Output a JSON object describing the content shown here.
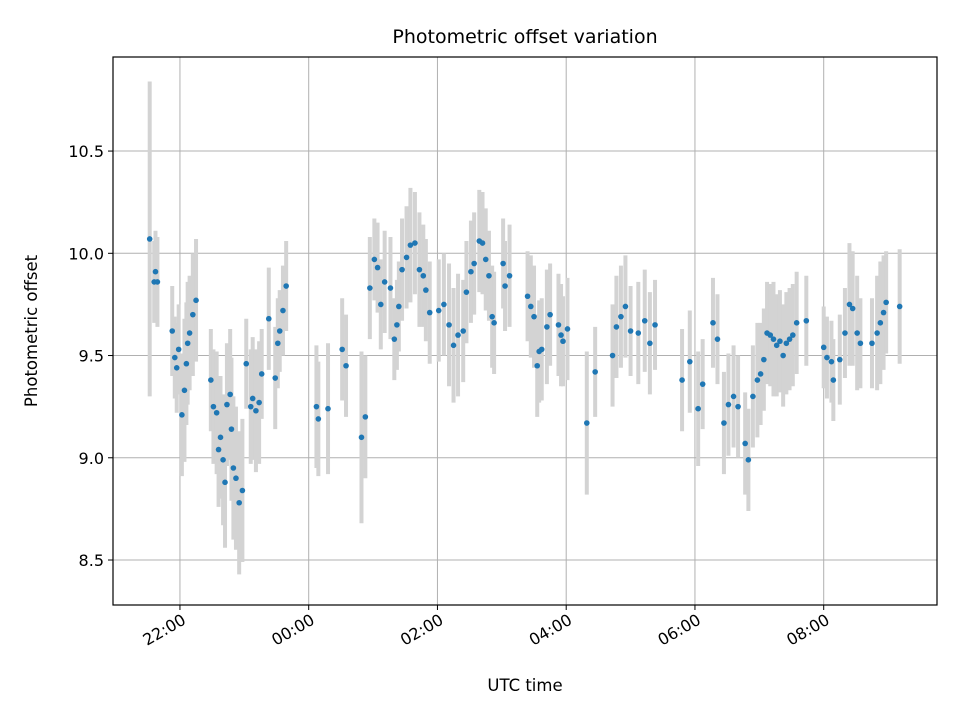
{
  "chart_data": {
    "type": "scatter",
    "title": "Photometric offset variation",
    "xlabel": "UTC time",
    "ylabel": "Photometric offset",
    "x_unit": "hours",
    "x_tick_values": [
      22,
      24,
      26,
      28,
      30,
      32
    ],
    "x_tick_labels": [
      "22:00",
      "00:00",
      "02:00",
      "04:00",
      "06:00",
      "08:00"
    ],
    "y_ticks": [
      8.5,
      9.0,
      9.5,
      10.0,
      10.5
    ],
    "y_tick_labels": [
      "8.5",
      "9.0",
      "9.5",
      "10.0",
      "10.5"
    ],
    "xlim": [
      20.96,
      33.76
    ],
    "ylim": [
      8.28,
      10.96
    ],
    "grid": true,
    "marker_color": "#1f77b4",
    "errorbar_color": "#d3d3d3",
    "points": [
      [
        21.53,
        10.07,
        0.77
      ],
      [
        21.6,
        9.86,
        0.2
      ],
      [
        21.62,
        9.91,
        0.2
      ],
      [
        21.65,
        9.86,
        0.22
      ],
      [
        21.88,
        9.62,
        0.22
      ],
      [
        21.92,
        9.49,
        0.2
      ],
      [
        21.95,
        9.44,
        0.22
      ],
      [
        21.98,
        9.53,
        0.22
      ],
      [
        22.03,
        9.21,
        0.3
      ],
      [
        22.07,
        9.33,
        0.35
      ],
      [
        22.1,
        9.46,
        0.3
      ],
      [
        22.12,
        9.56,
        0.3
      ],
      [
        22.15,
        9.61,
        0.28
      ],
      [
        22.2,
        9.7,
        0.3
      ],
      [
        22.25,
        9.77,
        0.3
      ],
      [
        22.48,
        9.38,
        0.25
      ],
      [
        22.52,
        9.25,
        0.28
      ],
      [
        22.57,
        9.22,
        0.3
      ],
      [
        22.6,
        9.04,
        0.28
      ],
      [
        22.63,
        9.1,
        0.3
      ],
      [
        22.67,
        8.99,
        0.32
      ],
      [
        22.7,
        8.88,
        0.32
      ],
      [
        22.73,
        9.26,
        0.3
      ],
      [
        22.78,
        9.31,
        0.32
      ],
      [
        22.8,
        9.14,
        0.35
      ],
      [
        22.83,
        8.95,
        0.35
      ],
      [
        22.87,
        8.9,
        0.35
      ],
      [
        22.92,
        8.78,
        0.35
      ],
      [
        22.97,
        8.84,
        0.35
      ],
      [
        23.03,
        9.46,
        0.22
      ],
      [
        23.1,
        9.25,
        0.28
      ],
      [
        23.13,
        9.29,
        0.3
      ],
      [
        23.18,
        9.23,
        0.3
      ],
      [
        23.23,
        9.27,
        0.3
      ],
      [
        23.27,
        9.41,
        0.22
      ],
      [
        23.38,
        9.68,
        0.25
      ],
      [
        23.48,
        9.39,
        0.25
      ],
      [
        23.52,
        9.56,
        0.22
      ],
      [
        23.55,
        9.62,
        0.2
      ],
      [
        23.6,
        9.72,
        0.22
      ],
      [
        23.65,
        9.84,
        0.22
      ],
      [
        24.12,
        9.25,
        0.3
      ],
      [
        24.15,
        9.19,
        0.28
      ],
      [
        24.3,
        9.24,
        0.32
      ],
      [
        24.52,
        9.53,
        0.25
      ],
      [
        24.58,
        9.45,
        0.25
      ],
      [
        24.82,
        9.1,
        0.42
      ],
      [
        24.88,
        9.2,
        0.3
      ],
      [
        24.95,
        9.83,
        0.25
      ],
      [
        25.02,
        9.97,
        0.2
      ],
      [
        25.07,
        9.93,
        0.22
      ],
      [
        25.12,
        9.75,
        0.22
      ],
      [
        25.18,
        9.86,
        0.25
      ],
      [
        25.27,
        9.83,
        0.25
      ],
      [
        25.33,
        9.58,
        0.2
      ],
      [
        25.37,
        9.65,
        0.22
      ],
      [
        25.4,
        9.74,
        0.22
      ],
      [
        25.45,
        9.92,
        0.25
      ],
      [
        25.52,
        9.98,
        0.25
      ],
      [
        25.58,
        10.04,
        0.28
      ],
      [
        25.65,
        10.05,
        0.25
      ],
      [
        25.72,
        9.92,
        0.28
      ],
      [
        25.78,
        9.89,
        0.25
      ],
      [
        25.82,
        9.82,
        0.25
      ],
      [
        25.88,
        9.71,
        0.25
      ],
      [
        26.02,
        9.72,
        0.25
      ],
      [
        26.1,
        9.75,
        0.25
      ],
      [
        26.18,
        9.65,
        0.3
      ],
      [
        26.25,
        9.55,
        0.28
      ],
      [
        26.32,
        9.6,
        0.3
      ],
      [
        26.4,
        9.62,
        0.25
      ],
      [
        26.45,
        9.81,
        0.25
      ],
      [
        26.52,
        9.91,
        0.25
      ],
      [
        26.57,
        9.95,
        0.25
      ],
      [
        26.65,
        10.06,
        0.25
      ],
      [
        26.7,
        10.05,
        0.25
      ],
      [
        26.75,
        9.97,
        0.25
      ],
      [
        26.8,
        9.89,
        0.22
      ],
      [
        26.85,
        9.69,
        0.25
      ],
      [
        26.88,
        9.66,
        0.25
      ],
      [
        27.02,
        9.95,
        0.22
      ],
      [
        27.05,
        9.84,
        0.22
      ],
      [
        27.12,
        9.89,
        0.25
      ],
      [
        27.4,
        9.79,
        0.22
      ],
      [
        27.45,
        9.74,
        0.25
      ],
      [
        27.5,
        9.69,
        0.25
      ],
      [
        27.55,
        9.45,
        0.25
      ],
      [
        27.58,
        9.52,
        0.25
      ],
      [
        27.62,
        9.53,
        0.25
      ],
      [
        27.7,
        9.64,
        0.28
      ],
      [
        27.75,
        9.7,
        0.25
      ],
      [
        27.88,
        9.65,
        0.25
      ],
      [
        27.92,
        9.6,
        0.25
      ],
      [
        27.95,
        9.57,
        0.22
      ],
      [
        28.02,
        9.63,
        0.25
      ],
      [
        28.32,
        9.17,
        0.35
      ],
      [
        28.45,
        9.42,
        0.22
      ],
      [
        28.72,
        9.5,
        0.25
      ],
      [
        28.78,
        9.64,
        0.25
      ],
      [
        28.85,
        9.69,
        0.25
      ],
      [
        28.92,
        9.74,
        0.25
      ],
      [
        29.0,
        9.62,
        0.22
      ],
      [
        29.12,
        9.61,
        0.25
      ],
      [
        29.22,
        9.67,
        0.25
      ],
      [
        29.3,
        9.56,
        0.25
      ],
      [
        29.38,
        9.65,
        0.22
      ],
      [
        29.8,
        9.38,
        0.25
      ],
      [
        29.92,
        9.47,
        0.25
      ],
      [
        30.05,
        9.24,
        0.28
      ],
      [
        30.12,
        9.36,
        0.22
      ],
      [
        30.28,
        9.66,
        0.22
      ],
      [
        30.35,
        9.58,
        0.22
      ],
      [
        30.45,
        9.17,
        0.25
      ],
      [
        30.52,
        9.26,
        0.25
      ],
      [
        30.6,
        9.3,
        0.25
      ],
      [
        30.67,
        9.25,
        0.25
      ],
      [
        30.78,
        9.07,
        0.25
      ],
      [
        30.83,
        8.99,
        0.25
      ],
      [
        30.9,
        9.3,
        0.25
      ],
      [
        30.97,
        9.38,
        0.28
      ],
      [
        31.02,
        9.41,
        0.25
      ],
      [
        31.07,
        9.48,
        0.25
      ],
      [
        31.12,
        9.61,
        0.25
      ],
      [
        31.17,
        9.6,
        0.25
      ],
      [
        31.22,
        9.58,
        0.28
      ],
      [
        31.27,
        9.55,
        0.25
      ],
      [
        31.32,
        9.57,
        0.25
      ],
      [
        31.37,
        9.5,
        0.25
      ],
      [
        31.42,
        9.56,
        0.25
      ],
      [
        31.47,
        9.58,
        0.25
      ],
      [
        31.52,
        9.6,
        0.25
      ],
      [
        31.58,
        9.66,
        0.25
      ],
      [
        31.73,
        9.67,
        0.22
      ],
      [
        32.0,
        9.54,
        0.2
      ],
      [
        32.05,
        9.49,
        0.2
      ],
      [
        32.12,
        9.47,
        0.2
      ],
      [
        32.15,
        9.38,
        0.2
      ],
      [
        32.25,
        9.48,
        0.22
      ],
      [
        32.33,
        9.61,
        0.22
      ],
      [
        32.4,
        9.75,
        0.3
      ],
      [
        32.45,
        9.73,
        0.28
      ],
      [
        32.52,
        9.61,
        0.28
      ],
      [
        32.57,
        9.56,
        0.22
      ],
      [
        32.75,
        9.56,
        0.22
      ],
      [
        32.83,
        9.61,
        0.28
      ],
      [
        32.88,
        9.66,
        0.3
      ],
      [
        32.93,
        9.71,
        0.28
      ],
      [
        32.97,
        9.76,
        0.25
      ],
      [
        33.18,
        9.74,
        0.28
      ]
    ]
  }
}
